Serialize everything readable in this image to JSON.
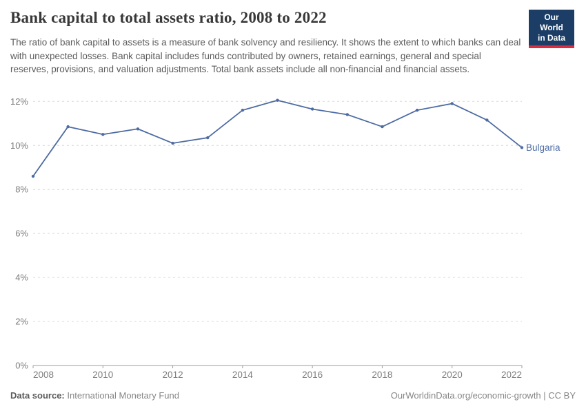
{
  "header": {
    "title": "Bank capital to total assets ratio, 2008 to 2022",
    "subtitle": "The ratio of bank capital to assets is a measure of bank solvency and resiliency. It shows the extent to which banks can deal with unexpected losses. Bank capital includes funds contributed by owners, retained earnings, general and special reserves, provisions, and valuation adjustments. Total bank assets include all non-financial and financial assets."
  },
  "logo": {
    "line1": "Our World",
    "line2": "in Data",
    "bg_color": "#1b3d66",
    "stripe_color": "#dc2c42"
  },
  "chart_data": {
    "type": "line",
    "title": "Bank capital to total assets ratio, 2008 to 2022",
    "x": [
      2008,
      2009,
      2010,
      2011,
      2012,
      2013,
      2014,
      2015,
      2016,
      2017,
      2018,
      2019,
      2020,
      2021,
      2022
    ],
    "series": [
      {
        "name": "Bulgaria",
        "color": "#4d6ba3",
        "values": [
          8.6,
          10.85,
          10.5,
          10.75,
          10.1,
          10.35,
          11.6,
          12.05,
          11.65,
          11.4,
          10.85,
          11.6,
          11.9,
          11.15,
          9.9
        ]
      }
    ],
    "xlabel": "",
    "ylabel": "",
    "ylim": [
      0,
      12
    ],
    "yticks": [
      0,
      2,
      4,
      6,
      8,
      10,
      12
    ],
    "ytick_format": "{}%",
    "xticks": [
      2008,
      2010,
      2012,
      2014,
      2016,
      2018,
      2020,
      2022
    ],
    "grid": "horizontal-dashed",
    "legend_position": "end-of-line-label",
    "grid_color": "#d9d9d9",
    "axis_color": "#9e9e9e",
    "tick_label_color": "#7d7d7d"
  },
  "footer": {
    "source_label": "Data source:",
    "source_value": "International Monetary Fund",
    "right_text": "OurWorldinData.org/economic-growth | CC BY"
  }
}
